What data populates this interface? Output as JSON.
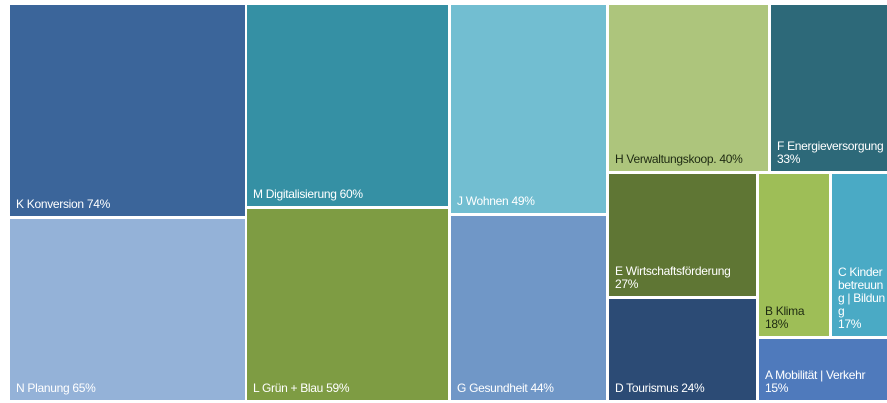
{
  "chart_data": {
    "type": "treemap",
    "categories": [
      "K Konversion",
      "N Planung",
      "M Digitalisierung",
      "L Grün + Blau",
      "J Wohnen",
      "G Gesundheit",
      "H Verwaltungskoop.",
      "F Energieversorgung",
      "E Wirtschaftsförderung",
      "D Tourismus",
      "B Klima",
      "C Kinderbetreuung | Bildung",
      "A Mobilität | Verkehr"
    ],
    "values": [
      74,
      65,
      60,
      59,
      49,
      44,
      40,
      33,
      27,
      24,
      18,
      17,
      15
    ],
    "value_labels": [
      "74%",
      "65%",
      "60%",
      "59%",
      "49%",
      "44%",
      "40%",
      "33%",
      "27%",
      "24%",
      "18%",
      "17%",
      "15%"
    ],
    "colors": [
      "#3b659a",
      "#94b2d8",
      "#3590a4",
      "#7e9c43",
      "#72bed1",
      "#7097c7",
      "#adc57c",
      "#2d6979",
      "#5f7634",
      "#2c4b75",
      "#9ebe57",
      "#4aaac5",
      "#4f7abc"
    ]
  }
}
